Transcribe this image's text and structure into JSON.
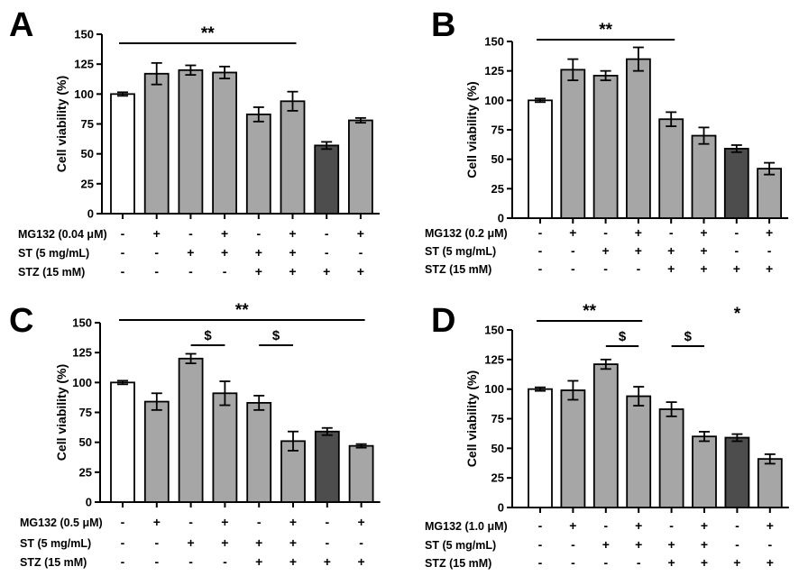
{
  "colors": {
    "white": "#ffffff",
    "gray": "#a6a6a6",
    "dark": "#4d4d4d",
    "ink": "#000000"
  },
  "chart_data": [
    {
      "type": "bar",
      "panel": "A",
      "ylabel": "Cell viability (%)",
      "ylim": [
        0,
        150
      ],
      "yticks": [
        "0",
        "25",
        "50",
        "75",
        "100",
        "125",
        "150"
      ],
      "values": [
        100,
        117,
        120,
        118,
        83,
        94,
        57,
        78
      ],
      "errors": [
        1.5,
        9,
        4,
        5,
        6,
        8,
        3,
        2
      ],
      "fills": [
        "white",
        "gray",
        "gray",
        "gray",
        "gray",
        "gray",
        "dark",
        "gray"
      ],
      "conditions": [
        {
          "label": "MG132 (0.04 μM)",
          "symbols": [
            "-",
            "+",
            "-",
            "+",
            "-",
            "+",
            "-",
            "+"
          ]
        },
        {
          "label": "ST (5 mg/mL)",
          "symbols": [
            "-",
            "-",
            "+",
            "+",
            "+",
            "+",
            "-",
            "-"
          ]
        },
        {
          "label": "STZ (15 mM)",
          "symbols": [
            "-",
            "-",
            "-",
            "-",
            "+",
            "+",
            "+",
            "+"
          ]
        }
      ],
      "significance": [
        {
          "text": "**",
          "from": 0,
          "to": 5
        }
      ]
    },
    {
      "type": "bar",
      "panel": "B",
      "ylabel": "Cell viability (%)",
      "ylim": [
        0,
        150
      ],
      "yticks": [
        "0",
        "25",
        "50",
        "75",
        "100",
        "125",
        "150"
      ],
      "values": [
        100,
        126,
        121,
        135,
        84,
        70,
        59,
        42
      ],
      "errors": [
        1.5,
        9,
        4,
        10,
        6,
        7,
        3,
        5
      ],
      "fills": [
        "white",
        "gray",
        "gray",
        "gray",
        "gray",
        "gray",
        "dark",
        "gray"
      ],
      "conditions": [
        {
          "label": "MG132 (0.2 μM)",
          "symbols": [
            "-",
            "+",
            "-",
            "+",
            "-",
            "+",
            "-",
            "+"
          ]
        },
        {
          "label": "ST (5 mg/mL)",
          "symbols": [
            "-",
            "-",
            "+",
            "+",
            "+",
            "+",
            "-",
            "-"
          ]
        },
        {
          "label": "STZ (15 mM)",
          "symbols": [
            "-",
            "-",
            "-",
            "-",
            "+",
            "+",
            "+",
            "+"
          ]
        }
      ],
      "significance": [
        {
          "text": "**",
          "from": 0,
          "to": 4
        }
      ]
    },
    {
      "type": "bar",
      "panel": "C",
      "ylabel": "Cell viability (%)",
      "ylim": [
        0,
        150
      ],
      "yticks": [
        "0",
        "25",
        "50",
        "75",
        "100",
        "125",
        "150"
      ],
      "values": [
        100,
        84,
        120,
        91,
        83,
        51,
        59,
        47
      ],
      "errors": [
        1.5,
        7,
        4,
        10,
        6,
        8,
        3,
        1.5
      ],
      "fills": [
        "white",
        "gray",
        "gray",
        "gray",
        "gray",
        "gray",
        "dark",
        "gray"
      ],
      "conditions": [
        {
          "label": "MG132 (0.5 μM)",
          "symbols": [
            "-",
            "+",
            "-",
            "+",
            "-",
            "+",
            "-",
            "+"
          ]
        },
        {
          "label": "ST (5 mg/mL)",
          "symbols": [
            "-",
            "-",
            "+",
            "+",
            "+",
            "+",
            "-",
            "-"
          ]
        },
        {
          "label": "STZ (15 mM)",
          "symbols": [
            "-",
            "-",
            "-",
            "-",
            "+",
            "+",
            "+",
            "+"
          ]
        }
      ],
      "significance": [
        {
          "text": "**",
          "from": 0,
          "to": 7
        },
        {
          "text": "$",
          "from": 2,
          "to": 3
        },
        {
          "text": "$",
          "from": 4,
          "to": 5
        }
      ]
    },
    {
      "type": "bar",
      "panel": "D",
      "ylabel": "Cell viability (%)",
      "ylim": [
        0,
        150
      ],
      "yticks": [
        "0",
        "25",
        "50",
        "75",
        "100",
        "125",
        "150"
      ],
      "values": [
        100,
        99,
        121,
        94,
        83,
        60,
        59,
        41
      ],
      "errors": [
        1.5,
        8,
        4,
        8,
        6,
        4,
        3,
        4
      ],
      "fills": [
        "white",
        "gray",
        "gray",
        "gray",
        "gray",
        "gray",
        "dark",
        "gray"
      ],
      "conditions": [
        {
          "label": "MG132 (1.0 μM)",
          "symbols": [
            "-",
            "+",
            "-",
            "+",
            "-",
            "+",
            "-",
            "+"
          ]
        },
        {
          "label": "ST (5 mg/mL)",
          "symbols": [
            "-",
            "-",
            "+",
            "+",
            "+",
            "+",
            "-",
            "-"
          ]
        },
        {
          "label": "STZ (15 mM)",
          "symbols": [
            "-",
            "-",
            "-",
            "-",
            "+",
            "+",
            "+",
            "+"
          ]
        }
      ],
      "significance": [
        {
          "text": "**",
          "from": 0,
          "to": 3
        },
        {
          "text": "$",
          "from": 2,
          "to": 3
        },
        {
          "text": "$",
          "from": 4,
          "to": 5
        },
        {
          "text": "*",
          "from": 6,
          "to": 6
        }
      ]
    }
  ]
}
